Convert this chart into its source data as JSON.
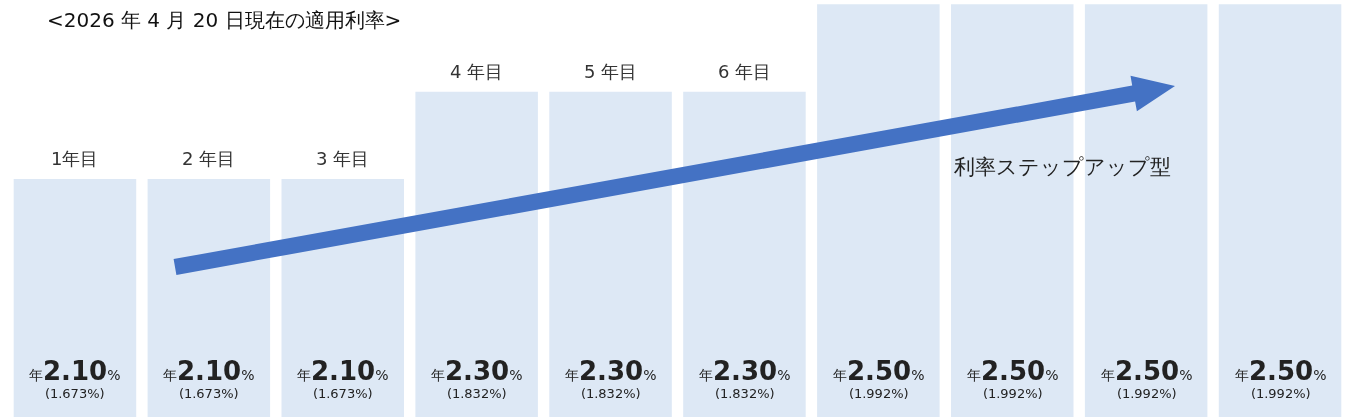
{
  "chart_data": {
    "type": "bar",
    "title": "<2026 年 4 月 20 日現在の適用利率>",
    "categories": [
      "1年目",
      "2 年目",
      "3 年目",
      "4 年目",
      "5 年目",
      "6 年目",
      null,
      null,
      null,
      null
    ],
    "values": [
      2.1,
      2.1,
      2.1,
      2.3,
      2.3,
      2.3,
      2.5,
      2.5,
      2.5,
      2.5
    ],
    "value_labels": [
      "年2.10%\n(1.673%)",
      "年2.10%\n(1.673%)",
      "年2.10%\n(1.673%)",
      "年2.30%\n(1.832%)",
      "年2.30%\n(1.832%)",
      "年2.30%\n(1.832%)",
      "年2.50%\n(1.992%)",
      "年2.50%\n(1.992%)",
      "年2.50%\n(1.992%)",
      "年2.50%\n(1.992%)"
    ],
    "color": "#dde8f5",
    "ylim": [
      1.555,
      2.51
    ],
    "tick_labels": false,
    "grid": false,
    "annotations": [
      "利率ステップアップ型"
    ]
  }
}
